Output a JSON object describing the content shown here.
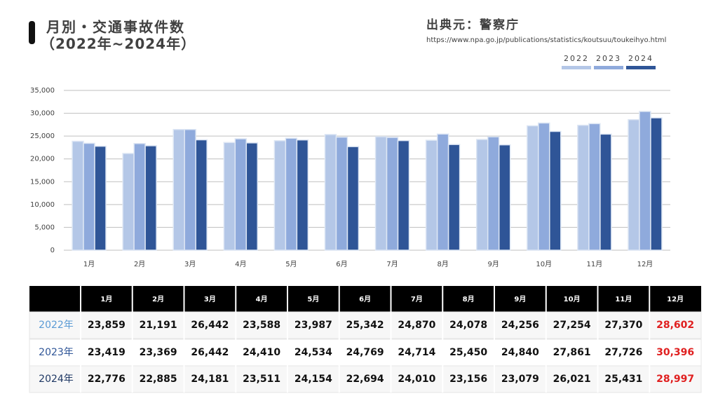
{
  "header": {
    "title": "月別・交通事故件数",
    "subtitle": "（2022年~2024年）",
    "source": "出典元：警察庁",
    "url": "https://www.npa.go.jp/publications/statistics/koutsuu/toukeihyo.html"
  },
  "chart_data": {
    "type": "bar",
    "grid": true,
    "legend": "top-right",
    "categories": [
      "1月",
      "2月",
      "3月",
      "4月",
      "5月",
      "6月",
      "7月",
      "8月",
      "9月",
      "10月",
      "11月",
      "12月"
    ],
    "ylim": [
      0,
      35000
    ],
    "yticks": [
      0,
      {
        "value": 5000,
        "label": "5,000"
      },
      {
        "value": 10000,
        "label": "10,000"
      },
      {
        "value": 15000,
        "label": "15,000"
      },
      {
        "value": 20000,
        "label": "20,000"
      },
      {
        "value": 25000,
        "label": "25,000"
      },
      {
        "value": 30000,
        "label": "30,000"
      },
      {
        "value": 35000,
        "label": "35,000"
      }
    ],
    "series": [
      {
        "name": "2022",
        "color": "#b4c7e7",
        "values": [
          23859,
          21191,
          26442,
          23588,
          23987,
          25342,
          24870,
          24078,
          24256,
          27254,
          27370,
          28602
        ],
        "value_labels": [
          "23,859",
          "21,191",
          "26,442",
          "23,588",
          "23,987",
          "25,342",
          "24,870",
          "24,078",
          "24,256",
          "27,254",
          "27,370",
          "28,602"
        ]
      },
      {
        "name": "2023",
        "color": "#8faadc",
        "values": [
          23419,
          23369,
          26442,
          24410,
          24534,
          24769,
          24714,
          25450,
          24840,
          27861,
          27726,
          30396
        ],
        "value_labels": [
          "23,419",
          "23,369",
          "26,442",
          "24,410",
          "24,534",
          "24,769",
          "24,714",
          "25,450",
          "24,840",
          "27,861",
          "27,726",
          "30,396"
        ]
      },
      {
        "name": "2024",
        "color": "#2f5597",
        "values": [
          22776,
          22885,
          24181,
          23511,
          24154,
          22694,
          24010,
          23156,
          23079,
          26021,
          25431,
          28997
        ],
        "value_labels": [
          "22,776",
          "22,885",
          "24,181",
          "23,511",
          "24,154",
          "22,694",
          "24,010",
          "23,156",
          "23,079",
          "26,021",
          "25,431",
          "28,997"
        ]
      }
    ]
  },
  "table": {
    "row_labels": [
      "2022年",
      "2023年",
      "2024年"
    ],
    "row_label_colors": [
      "#5b9bd5",
      "#2f5597",
      "#1f3864"
    ],
    "highlight_color": "#e02020"
  }
}
